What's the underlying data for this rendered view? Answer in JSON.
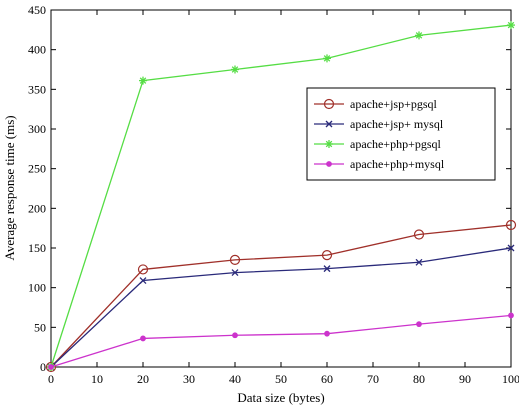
{
  "chart_data": {
    "type": "line",
    "xlabel": "Data size (bytes)",
    "ylabel": "Average response time (ms)",
    "xlim": [
      0,
      100
    ],
    "ylim": [
      0,
      450
    ],
    "xticks": [
      0,
      10,
      20,
      30,
      40,
      50,
      60,
      70,
      80,
      90,
      100
    ],
    "yticks": [
      0,
      50,
      100,
      150,
      200,
      250,
      300,
      350,
      400,
      450
    ],
    "grid": false,
    "legend_position": "right",
    "x": [
      0,
      20,
      40,
      60,
      80,
      100
    ],
    "series": [
      {
        "name": "apache+jsp+pgsql",
        "values": [
          0,
          123,
          135,
          141,
          167,
          179
        ],
        "color": "#a0302a",
        "marker": "circle"
      },
      {
        "name": "apache+jsp+ mysql",
        "values": [
          0,
          109,
          119,
          124,
          132,
          150
        ],
        "color": "#2a2a7a",
        "marker": "x"
      },
      {
        "name": "apache+php+pgsql",
        "values": [
          0,
          361,
          375,
          389,
          418,
          431
        ],
        "color": "#55dd44",
        "marker": "star"
      },
      {
        "name": "apache+php+mysql",
        "values": [
          0,
          36,
          40,
          42,
          54,
          65
        ],
        "color": "#cc33cc",
        "marker": "dot"
      }
    ]
  }
}
